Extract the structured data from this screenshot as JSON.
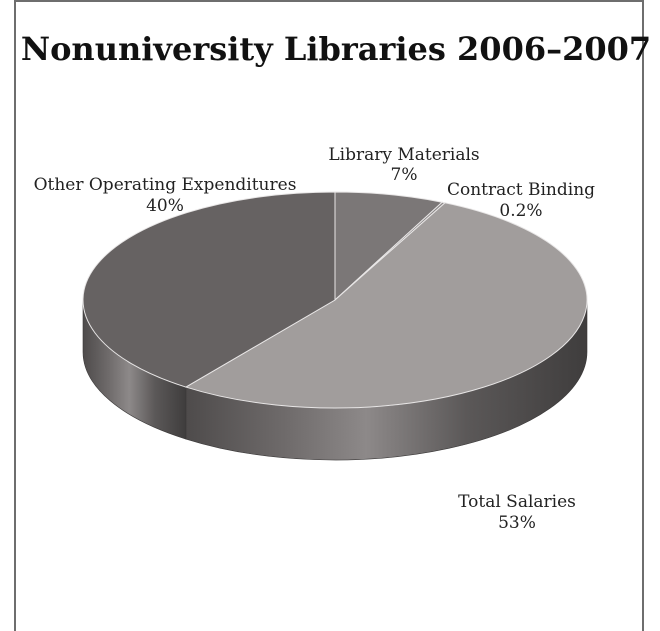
{
  "chart_data": {
    "type": "pie",
    "title": "Nonuniversity Libraries 2006–2007",
    "slices": [
      {
        "label": "Library Materials",
        "value": 7,
        "display": "7%",
        "color": "#7b7777"
      },
      {
        "label": "Contract Binding",
        "value": 0.2,
        "display": "0.2%",
        "color": "#8a8686"
      },
      {
        "label": "Total Salaries",
        "value": 53,
        "display": "53%",
        "color": "#a19d9c"
      },
      {
        "label": "Other Operating Expenditures",
        "value": 40,
        "display": "40%",
        "color": "#666262"
      }
    ]
  }
}
